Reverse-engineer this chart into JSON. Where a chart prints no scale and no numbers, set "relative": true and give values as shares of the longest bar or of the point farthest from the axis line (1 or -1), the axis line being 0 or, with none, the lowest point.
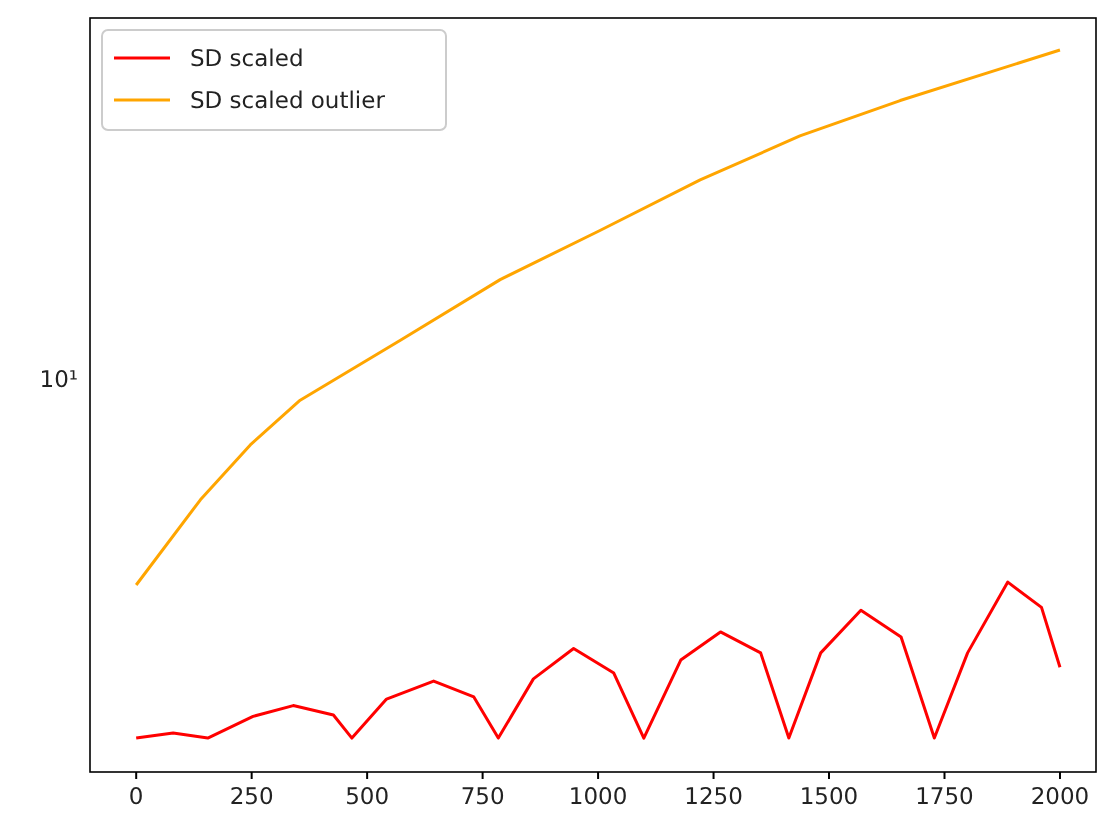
{
  "chart_data": {
    "type": "line",
    "relative": true,
    "legend": "top left",
    "grid": false,
    "xlim": [
      -100,
      2078
    ],
    "xticks": [
      0,
      250,
      500,
      750,
      1000,
      1250,
      1500,
      1750,
      2000
    ],
    "annotations": [
      "10¹"
    ],
    "series": [
      {
        "name": "SD scaled",
        "color": "#ff0000",
        "x": [
          0,
          80,
          155,
          253,
          340,
          427,
          467,
          542,
          644,
          731,
          784,
          860,
          947,
          1034,
          1099,
          1179,
          1265,
          1352,
          1413,
          1482,
          1569,
          1656,
          1728,
          1800,
          1887,
          1960,
          2000
        ],
        "values": [
          0.047,
          0.054,
          0.047,
          0.077,
          0.092,
          0.079,
          0.047,
          0.101,
          0.126,
          0.104,
          0.047,
          0.129,
          0.171,
          0.137,
          0.047,
          0.155,
          0.194,
          0.165,
          0.047,
          0.165,
          0.224,
          0.187,
          0.047,
          0.165,
          0.263,
          0.228,
          0.145
        ]
      },
      {
        "name": "SD scaled outlier",
        "color": "#ffa500",
        "x": [
          0,
          139,
          247,
          355,
          572,
          788,
          1004,
          1221,
          1437,
          1654,
          2000
        ],
        "values": [
          0.259,
          0.377,
          0.453,
          0.515,
          0.598,
          0.682,
          0.75,
          0.82,
          0.881,
          0.93,
          1
        ]
      }
    ]
  }
}
